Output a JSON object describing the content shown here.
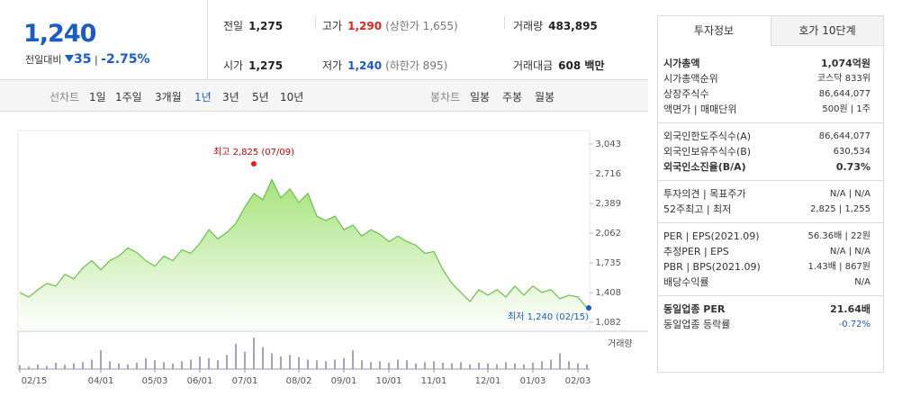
{
  "header": {
    "price": "1,240",
    "change_label": "전일대비",
    "change": "35",
    "rate": "-2.75%"
  },
  "summary": [
    {
      "label": "전일",
      "value": "1,275"
    },
    {
      "label": "고가",
      "value": "1,290",
      "note": "(상한가 1,655)"
    },
    {
      "label": "거래량",
      "value": "483,895"
    },
    {
      "label": "시가",
      "value": "1,275"
    },
    {
      "label": "저가",
      "value": "1,240",
      "note": "(하한가 895)"
    },
    {
      "label": "거래대금",
      "value": "608 백만"
    }
  ],
  "periods": {
    "line_label": "선차트",
    "line": [
      "1일",
      "1주일",
      "3개월",
      "1년",
      "3년",
      "5년",
      "10년"
    ],
    "active": "1년",
    "candle_label": "봉차트",
    "candle": [
      "일봉",
      "주봉",
      "월봉"
    ]
  },
  "chart_data": {
    "type": "line",
    "color": "#6cc04a",
    "categories": [
      "02/15",
      null,
      null,
      null,
      null,
      null,
      null,
      null,
      null,
      "04/01",
      null,
      null,
      null,
      null,
      null,
      "05/03",
      null,
      null,
      null,
      null,
      "06/01",
      null,
      null,
      null,
      null,
      "07/01",
      null,
      null,
      null,
      null,
      null,
      "08/02",
      null,
      null,
      null,
      null,
      "09/01",
      null,
      null,
      null,
      null,
      "10/01",
      null,
      null,
      null,
      null,
      "11/01",
      null,
      null,
      null,
      null,
      null,
      "12/01",
      null,
      null,
      null,
      null,
      "01/03",
      null,
      null,
      null,
      null,
      "02/03",
      null
    ],
    "values": [
      1410,
      1360,
      1440,
      1510,
      1480,
      1610,
      1560,
      1680,
      1760,
      1660,
      1760,
      1810,
      1900,
      1850,
      1760,
      1700,
      1810,
      1760,
      1880,
      1840,
      1950,
      2100,
      2000,
      2070,
      2170,
      2350,
      2500,
      2430,
      2650,
      2450,
      2550,
      2400,
      2500,
      2250,
      2200,
      2250,
      2100,
      2150,
      2030,
      2100,
      2050,
      1970,
      2030,
      1970,
      1930,
      1840,
      1860,
      1660,
      1510,
      1410,
      1310,
      1440,
      1380,
      1440,
      1360,
      1480,
      1380,
      1480,
      1410,
      1440,
      1340,
      1380,
      1360,
      1240
    ],
    "ylim": [
      1082,
      3043
    ],
    "yticks": [
      {
        "value": 1082,
        "label": "1,082"
      },
      {
        "value": 1408,
        "label": "1,408"
      },
      {
        "value": 1735,
        "label": "1,735"
      },
      {
        "value": 2062,
        "label": "2,062"
      },
      {
        "value": 2389,
        "label": "2,389"
      },
      {
        "value": 2716,
        "label": "2,716"
      },
      {
        "value": 3043,
        "label": "3,043"
      }
    ],
    "high": {
      "text": "최고 2,825 (07/09)",
      "value": 2825
    },
    "low": {
      "text": "최저 1,240 (02/15)",
      "value": 1240
    },
    "volume": {
      "label": "거래량",
      "color": "#a79fcb",
      "ylim": [
        0,
        100
      ],
      "values": [
        12,
        8,
        15,
        10,
        20,
        14,
        18,
        22,
        30,
        60,
        25,
        18,
        15,
        20,
        35,
        28,
        22,
        18,
        25,
        30,
        40,
        35,
        28,
        45,
        80,
        55,
        100,
        70,
        50,
        40,
        45,
        38,
        30,
        28,
        25,
        30,
        35,
        60,
        28,
        22,
        25,
        20,
        30,
        28,
        18,
        22,
        25,
        20,
        18,
        22,
        15,
        20,
        18,
        15,
        22,
        18,
        15,
        20,
        25,
        30,
        50,
        25,
        18,
        15
      ]
    }
  },
  "side": {
    "tabs": [
      "투자정보",
      "호가 10단계"
    ],
    "sections": [
      [
        [
          "시가총액",
          "1,074억원"
        ],
        [
          "시가총액순위",
          "코스닥 833위"
        ],
        [
          "상장주식수",
          "86,644,077"
        ],
        [
          "액면가 | 매매단위",
          "500원 | 1주"
        ]
      ],
      [
        [
          "외국인한도주식수(A)",
          "86,644,077"
        ],
        [
          "외국인보유주식수(B)",
          "630,534"
        ],
        [
          "외국인소진율(B/A)",
          "0.73%"
        ]
      ],
      [
        [
          "투자의견 | 목표주가",
          "N/A | N/A"
        ],
        [
          "52주최고 | 최저",
          "2,825 | 1,255"
        ]
      ],
      [
        [
          "PER | EPS(2021.09)",
          "56.36배 | 22원"
        ],
        [
          "추정PER | EPS",
          "N/A | N/A"
        ],
        [
          "PBR | BPS(2021.09)",
          "1.43배 | 867원"
        ],
        [
          "배당수익률",
          "N/A"
        ]
      ],
      [
        [
          "동일업종 PER",
          "21.64배"
        ],
        [
          "동일업종 등락률",
          "-0.72%"
        ]
      ]
    ]
  }
}
